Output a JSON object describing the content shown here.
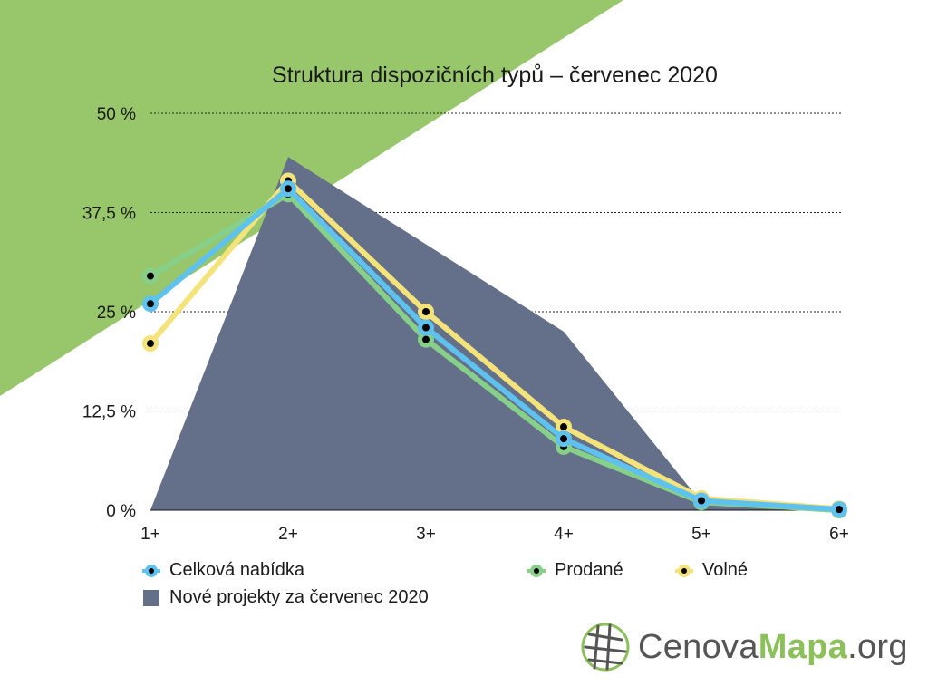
{
  "colors": {
    "background_triangle": "#97c66b",
    "area": "#647089",
    "celkova": "#5fc2ee",
    "prodane": "#86d08a",
    "volne": "#f4e27a",
    "marker_center": "#000000",
    "logo_green": "#8cc05a",
    "logo_gray": "#555555"
  },
  "legend": {
    "celkova_label": "Celková nabídka",
    "prodane_label": "Prodané",
    "volne_label": "Volné",
    "area_label": "Nové projekty za červenec 2020"
  },
  "logo": {
    "part1": "Cenova",
    "part2": "Mapa",
    "part3": ".org",
    "icon": "globe-grid-icon"
  },
  "chart_data": {
    "type": "line",
    "title": "Struktura dispozičních typů – červenec 2020",
    "categories": [
      "1+",
      "2+",
      "3+",
      "4+",
      "5+",
      "6+"
    ],
    "y_ticks": [
      "0 %",
      "12,5 %",
      "25 %",
      "37,5 %",
      "50 %"
    ],
    "ylim": [
      0,
      50
    ],
    "grid": "horizontal dotted",
    "legend_position": "bottom",
    "series": [
      {
        "name": "Nové projekty za červenec 2020",
        "kind": "area",
        "values": [
          0,
          44.5,
          33.5,
          22.5,
          1,
          0
        ]
      },
      {
        "name": "Prodané",
        "kind": "line",
        "values": [
          29.5,
          39.8,
          21.5,
          8,
          1,
          0
        ]
      },
      {
        "name": "Volné",
        "kind": "line",
        "values": [
          21,
          41.5,
          25,
          10.5,
          1.5,
          0.2
        ]
      },
      {
        "name": "Celková nabídka",
        "kind": "line",
        "values": [
          26,
          40.5,
          23,
          9,
          1.2,
          0.1
        ]
      }
    ]
  }
}
